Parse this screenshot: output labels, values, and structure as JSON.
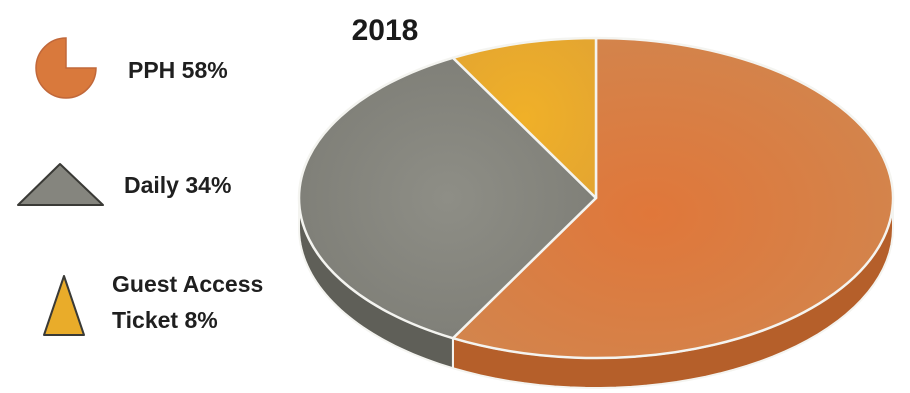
{
  "chart_data": {
    "type": "pie",
    "title": "2018",
    "categories": [
      "PPH",
      "Daily",
      "Guest Access Ticket"
    ],
    "values": [
      58,
      34,
      8
    ],
    "unit": "%",
    "legend_placement": "left",
    "legend": [
      {
        "label_lines": [
          "PPH 58%"
        ],
        "icon": "pie-slice-icon",
        "color": "#d9793c"
      },
      {
        "label_lines": [
          "Daily 34%"
        ],
        "icon": "triangle-icon",
        "color": "#85857e"
      },
      {
        "label_lines": [
          "Guest Access",
          "Ticket 8%"
        ],
        "icon": "triangle-icon",
        "color": "#e9ac2a"
      }
    ],
    "colors": [
      "#d9793c",
      "#85857e",
      "#e9ac2a"
    ],
    "side_colors": [
      "#b55f2a",
      "#5f5f58",
      "#b9861c"
    ]
  }
}
